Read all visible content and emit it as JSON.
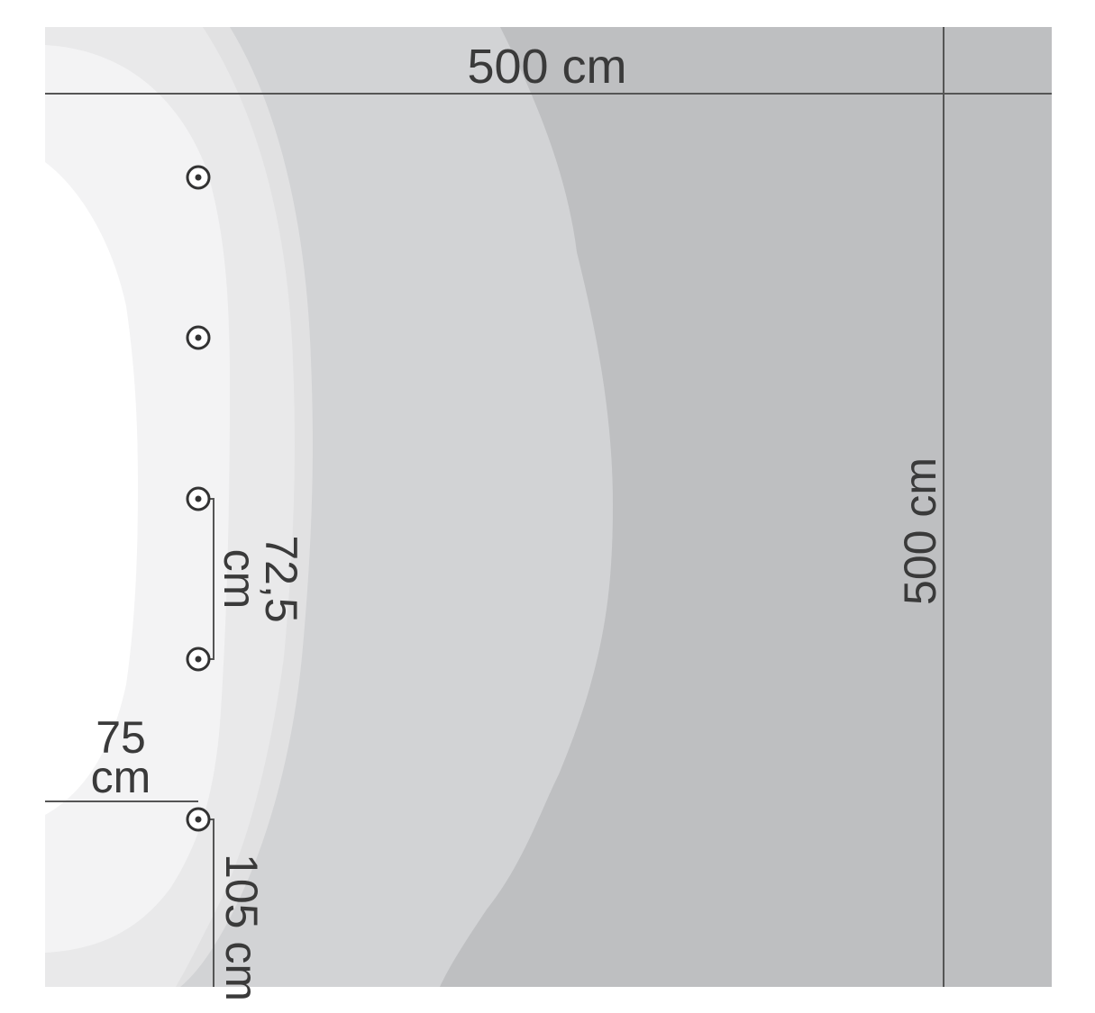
{
  "diagram": {
    "colors": {
      "background": "#ffffff",
      "zone_brightest": "#ffffff",
      "zone_2": "#f3f3f4",
      "zone_3": "#e9e9ea",
      "zone_4": "#e1e1e2",
      "zone_5": "#d2d3d5",
      "zone_darkest": "#bebfc1",
      "dimension_line": "#555555",
      "text": "#3a3a3a"
    },
    "dimensions": {
      "room_width": "500 cm",
      "room_height": "500 cm",
      "luminaire_spacing_value": "72,5",
      "luminaire_spacing_unit": "cm",
      "wall_offset_value": "75",
      "wall_offset_unit": "cm",
      "end_distance": "105 cm"
    },
    "luminaire_count": 5,
    "luminaire_icon": "circle-dot-icon"
  }
}
